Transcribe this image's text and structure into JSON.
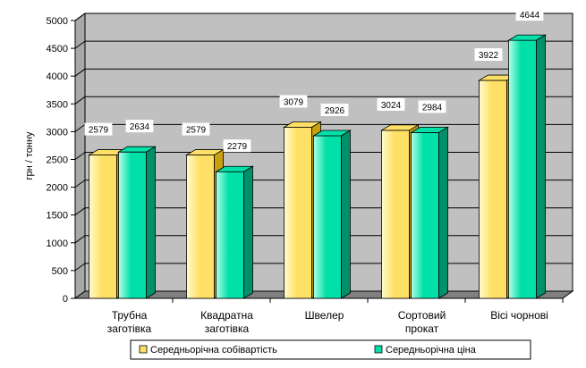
{
  "chart_data": {
    "type": "bar",
    "ylabel": "грн / тонну",
    "xlabel": "",
    "ylim": [
      0,
      5000
    ],
    "ytick_step": 500,
    "grid": true,
    "legend_position": "bottom",
    "categories": [
      [
        "Трубна",
        "заготівка"
      ],
      [
        "Квадратна",
        "заготівка"
      ],
      [
        "Швелер"
      ],
      [
        "Сортовий",
        "прокат"
      ],
      [
        "Вісі чорнові"
      ]
    ],
    "series": [
      {
        "name": "Середньорічна собівартість",
        "values": [
          2579,
          2579,
          3079,
          3024,
          3922
        ],
        "color": "#FFE066",
        "color_light": "#FFFBD0",
        "color_dark": "#C8A010"
      },
      {
        "name": "Середньорічна ціна",
        "values": [
          2634,
          2279,
          2926,
          2984,
          4644
        ],
        "color": "#00E0A8",
        "color_light": "#B0FFE8",
        "color_dark": "#00906A"
      }
    ],
    "data_labels": [
      [
        "2579",
        "2634"
      ],
      [
        "2579",
        "2279"
      ],
      [
        "3079",
        "2926"
      ],
      [
        "3024",
        "2984"
      ],
      [
        "3922",
        "4644"
      ]
    ]
  }
}
